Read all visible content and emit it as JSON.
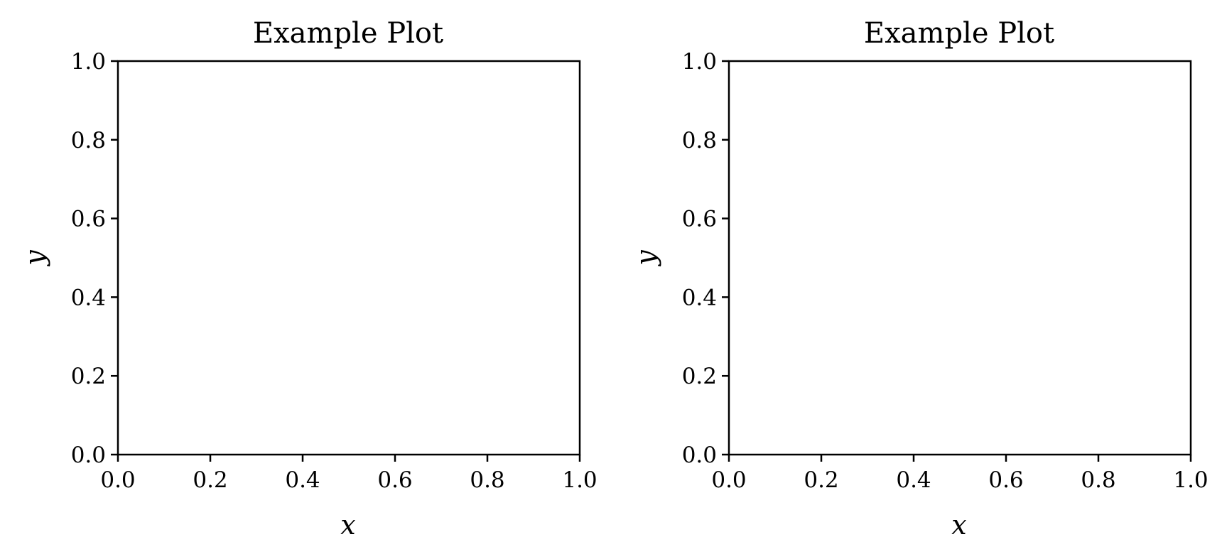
{
  "figure": {
    "background_color": "#ffffff",
    "axis_color": "#000000"
  },
  "chart_data": [
    {
      "type": "line",
      "title": "Example Plot",
      "xlabel": "x",
      "ylabel": "y",
      "xlim": [
        0.0,
        1.0
      ],
      "ylim": [
        0.0,
        1.0
      ],
      "xticks": [
        "0.0",
        "0.2",
        "0.4",
        "0.6",
        "0.8",
        "1.0"
      ],
      "yticks": [
        "0.0",
        "0.2",
        "0.4",
        "0.6",
        "0.8",
        "1.0"
      ],
      "grid": false,
      "series": []
    },
    {
      "type": "line",
      "title": "Example Plot",
      "xlabel": "x",
      "ylabel": "y",
      "xlim": [
        0.0,
        1.0
      ],
      "ylim": [
        0.0,
        1.0
      ],
      "xticks": [
        "0.0",
        "0.2",
        "0.4",
        "0.6",
        "0.8",
        "1.0"
      ],
      "yticks": [
        "0.0",
        "0.2",
        "0.4",
        "0.6",
        "0.8",
        "1.0"
      ],
      "grid": false,
      "series": []
    }
  ]
}
